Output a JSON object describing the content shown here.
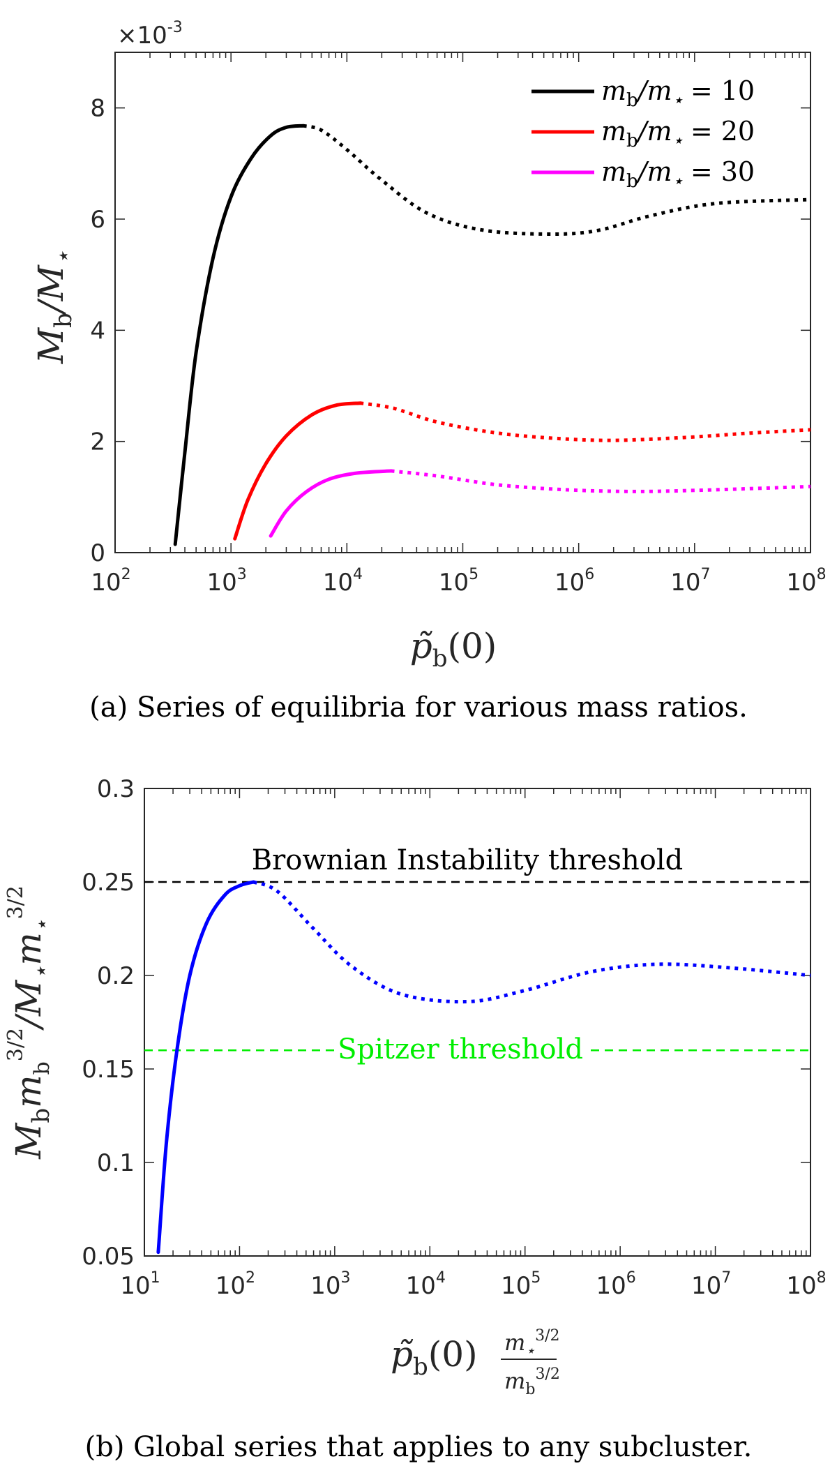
{
  "chart_data": [
    {
      "type": "line",
      "xscale": "log",
      "xlim": [
        100,
        100000000
      ],
      "ylim": [
        0,
        9
      ],
      "y_multiplier": "×10-3",
      "y_multiplier_base": "×10",
      "y_multiplier_exp": "-3",
      "xlabel": "p̃b(0)",
      "ylabel": "Mb/M⋆",
      "x_ticks": [
        {
          "base": "10",
          "exp": "2",
          "value": 100
        },
        {
          "base": "10",
          "exp": "3",
          "value": 1000
        },
        {
          "base": "10",
          "exp": "4",
          "value": 10000
        },
        {
          "base": "10",
          "exp": "5",
          "value": 100000
        },
        {
          "base": "10",
          "exp": "6",
          "value": 1000000
        },
        {
          "base": "10",
          "exp": "7",
          "value": 10000000
        },
        {
          "base": "10",
          "exp": "8",
          "value": 100000000
        }
      ],
      "y_ticks": [
        "0",
        "2",
        "4",
        "6",
        "8"
      ],
      "legend_position": "top-right",
      "caption": "(a) Series of equilibria for various mass ratios.",
      "series": [
        {
          "name": "mb/m⋆ = 10",
          "legend_lhs": "m",
          "legend_sub": "b",
          "legend_rest": "/m",
          "legend_sub2": "⋆",
          "legend_value": "= 10",
          "color": "#000000",
          "stable": [
            [
              330,
              0.15
            ],
            [
              400,
              1.8
            ],
            [
              500,
              3.6
            ],
            [
              700,
              5.3
            ],
            [
              1000,
              6.4
            ],
            [
              1500,
              7.1
            ],
            [
              2200,
              7.5
            ],
            [
              3000,
              7.65
            ],
            [
              4200,
              7.68
            ]
          ],
          "unstable": [
            [
              4200,
              7.68
            ],
            [
              6000,
              7.6
            ],
            [
              10000,
              7.25
            ],
            [
              20000,
              6.7
            ],
            [
              50000,
              6.1
            ],
            [
              150000,
              5.8
            ],
            [
              600000,
              5.73
            ],
            [
              1500000,
              5.8
            ],
            [
              4000000,
              6.05
            ],
            [
              15000000,
              6.28
            ],
            [
              100000000,
              6.35
            ]
          ]
        },
        {
          "name": "mb/m⋆ = 20",
          "legend_lhs": "m",
          "legend_sub": "b",
          "legend_rest": "/m",
          "legend_sub2": "⋆",
          "legend_value": "= 20",
          "color": "#ff0000",
          "stable": [
            [
              1080,
              0.25
            ],
            [
              1400,
              0.95
            ],
            [
              2000,
              1.6
            ],
            [
              3000,
              2.1
            ],
            [
              5000,
              2.48
            ],
            [
              8000,
              2.65
            ],
            [
              13000,
              2.69
            ]
          ],
          "unstable": [
            [
              13000,
              2.69
            ],
            [
              25000,
              2.6
            ],
            [
              60000,
              2.35
            ],
            [
              200000,
              2.15
            ],
            [
              700000,
              2.05
            ],
            [
              2000000,
              2.02
            ],
            [
              8000000,
              2.07
            ],
            [
              30000000,
              2.15
            ],
            [
              100000000,
              2.21
            ]
          ]
        },
        {
          "name": "mb/m⋆ = 30",
          "legend_lhs": "m",
          "legend_sub": "b",
          "legend_rest": "/m",
          "legend_sub2": "⋆",
          "legend_value": "= 30",
          "color": "#ff00ff",
          "stable": [
            [
              2200,
              0.3
            ],
            [
              3000,
              0.75
            ],
            [
              4500,
              1.1
            ],
            [
              7000,
              1.32
            ],
            [
              12000,
              1.43
            ],
            [
              24000,
              1.47
            ]
          ],
          "unstable": [
            [
              24000,
              1.47
            ],
            [
              60000,
              1.38
            ],
            [
              200000,
              1.22
            ],
            [
              800000,
              1.13
            ],
            [
              3000000,
              1.1
            ],
            [
              10000000,
              1.12
            ],
            [
              40000000,
              1.16
            ],
            [
              100000000,
              1.19
            ]
          ]
        }
      ]
    },
    {
      "type": "line",
      "xscale": "log",
      "xlim": [
        10,
        100000000
      ],
      "ylim": [
        0.05,
        0.3
      ],
      "xlabel": "p̃b(0) m⋆^(3/2)/mb^(3/2)",
      "ylabel": "Mb mb^(3/2)/M⋆ m⋆^(3/2)",
      "x_ticks": [
        {
          "base": "10",
          "exp": "1",
          "value": 10
        },
        {
          "base": "10",
          "exp": "2",
          "value": 100
        },
        {
          "base": "10",
          "exp": "3",
          "value": 1000
        },
        {
          "base": "10",
          "exp": "4",
          "value": 10000
        },
        {
          "base": "10",
          "exp": "5",
          "value": 100000
        },
        {
          "base": "10",
          "exp": "6",
          "value": 1000000
        },
        {
          "base": "10",
          "exp": "7",
          "value": 10000000
        },
        {
          "base": "10",
          "exp": "8",
          "value": 100000000
        }
      ],
      "y_ticks": [
        "0.05",
        "0.1",
        "0.15",
        "0.2",
        "0.25",
        "0.3"
      ],
      "caption": "(b) Global series that applies to any subcluster.",
      "thresholds": [
        {
          "label": "Brownian Instability threshold",
          "value": 0.25,
          "color": "#000000"
        },
        {
          "label": "Spitzer threshold",
          "value": 0.16,
          "color": "#00ee00"
        }
      ],
      "series": [
        {
          "color": "#0000ff",
          "stable": [
            [
              14,
              0.052
            ],
            [
              17,
              0.11
            ],
            [
              22,
              0.16
            ],
            [
              30,
              0.2
            ],
            [
              45,
              0.228
            ],
            [
              70,
              0.243
            ],
            [
              100,
              0.248
            ],
            [
              140,
              0.25
            ]
          ],
          "unstable": [
            [
              140,
              0.25
            ],
            [
              250,
              0.245
            ],
            [
              600,
              0.225
            ],
            [
              1500,
              0.205
            ],
            [
              5000,
              0.19
            ],
            [
              25000,
              0.186
            ],
            [
              100000,
              0.192
            ],
            [
              500000,
              0.202
            ],
            [
              2500000,
              0.206
            ],
            [
              15000000,
              0.204
            ],
            [
              100000000,
              0.2
            ]
          ]
        }
      ]
    }
  ]
}
